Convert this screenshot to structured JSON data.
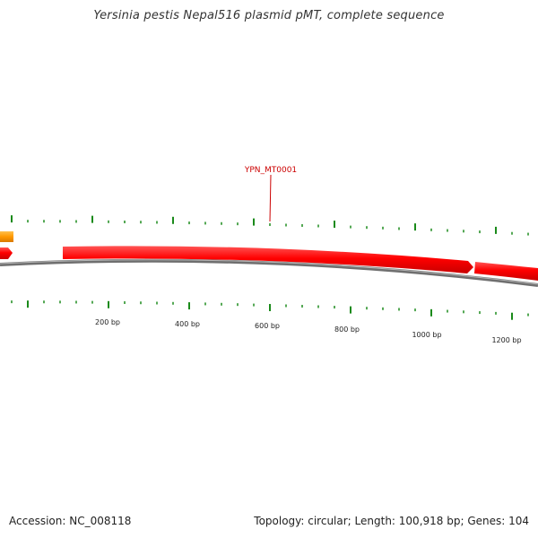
{
  "title": "Yersinia pestis Nepal516 plasmid pMT, complete sequence",
  "gene_label": "YPN_MT0001",
  "scale_labels": [
    "200 bp",
    "400 bp",
    "600 bp",
    "800 bp",
    "1000 bp",
    "1200 bp"
  ],
  "footer": {
    "accession": "Accession: NC_008118",
    "summary": "Topology: circular; Length: 100,918 bp; Genes: 104"
  },
  "colors": {
    "forward_gene": "#ff0000",
    "other_feature": "#ff9900",
    "label": "#cc0000",
    "tick": "#1a8a1a",
    "backbone": "#808080"
  }
}
